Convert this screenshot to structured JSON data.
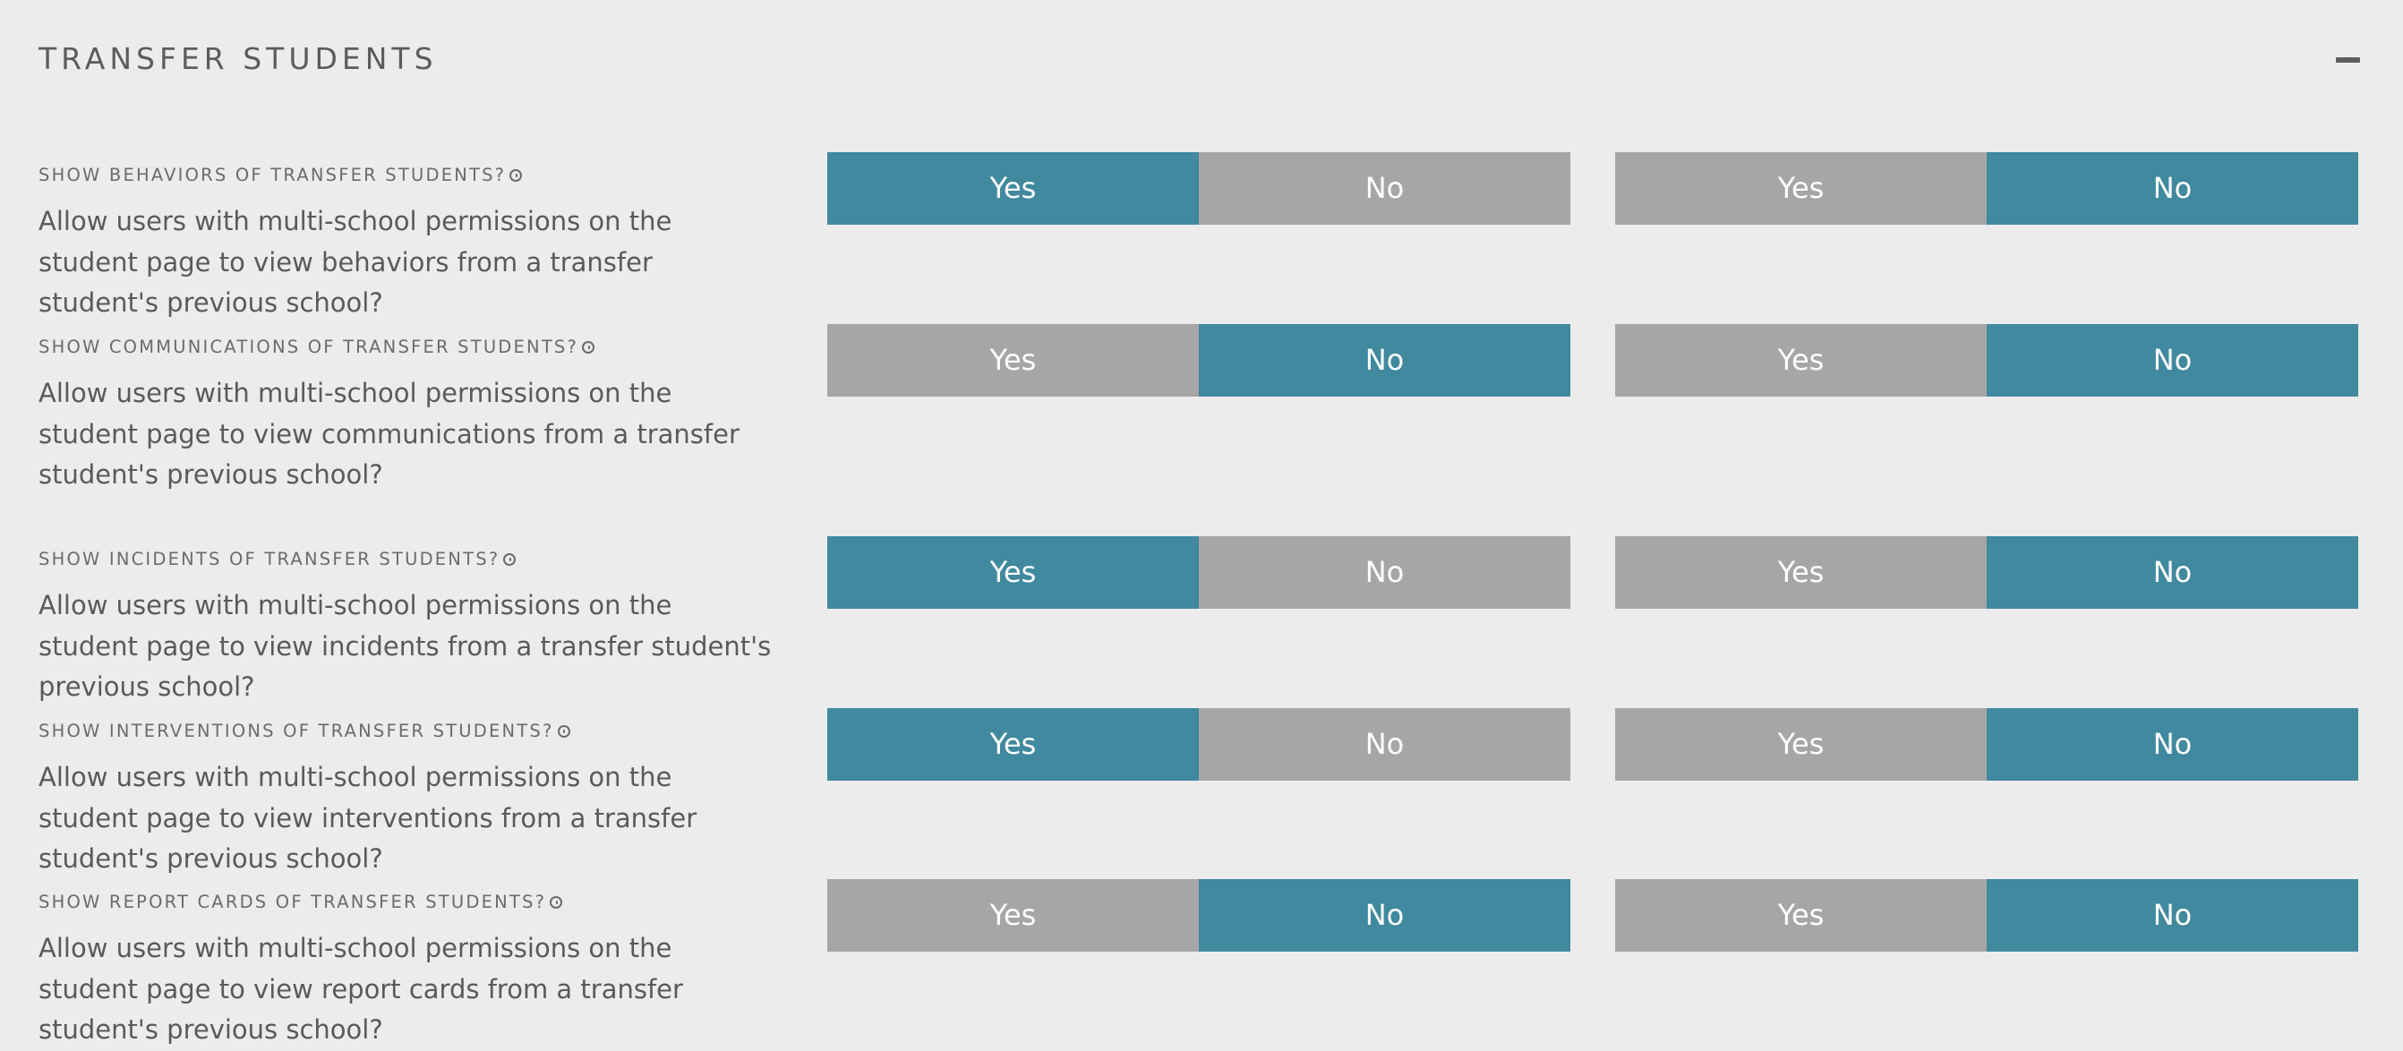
{
  "section": {
    "title": "TRANSFER STUDENTS"
  },
  "colors": {
    "active": "#40899e",
    "inactive": "#a6a6a6",
    "background": "#ececec"
  },
  "settings": [
    {
      "label": "SHOW BEHAVIORS OF TRANSFER STUDENTS?",
      "description": "Allow users with multi-school permissions on the student page to view behaviors from a transfer student's previous school?",
      "toggle_a": {
        "yes": "Yes",
        "no": "No",
        "selected": "Yes"
      },
      "toggle_b": {
        "yes": "Yes",
        "no": "No",
        "selected": "No"
      }
    },
    {
      "label": "SHOW COMMUNICATIONS OF TRANSFER STUDENTS?",
      "description": "Allow users with multi-school permissions on the student page to view communications from a transfer student's previous school?",
      "toggle_a": {
        "yes": "Yes",
        "no": "No",
        "selected": "No"
      },
      "toggle_b": {
        "yes": "Yes",
        "no": "No",
        "selected": "No"
      }
    },
    {
      "label": "SHOW INCIDENTS OF TRANSFER STUDENTS?",
      "description": "Allow users with multi-school permissions on the student page to view incidents from a transfer student's previous school?",
      "toggle_a": {
        "yes": "Yes",
        "no": "No",
        "selected": "Yes"
      },
      "toggle_b": {
        "yes": "Yes",
        "no": "No",
        "selected": "No"
      }
    },
    {
      "label": "SHOW INTERVENTIONS OF TRANSFER STUDENTS?",
      "description": "Allow users with multi-school permissions on the student page to view interventions from a transfer student's previous school?",
      "toggle_a": {
        "yes": "Yes",
        "no": "No",
        "selected": "Yes"
      },
      "toggle_b": {
        "yes": "Yes",
        "no": "No",
        "selected": "No"
      }
    },
    {
      "label": "SHOW REPORT CARDS OF TRANSFER STUDENTS?",
      "description": "Allow users with multi-school permissions on the student page to view report cards from a transfer student's previous school?",
      "toggle_a": {
        "yes": "Yes",
        "no": "No",
        "selected": "No"
      },
      "toggle_b": {
        "yes": "Yes",
        "no": "No",
        "selected": "No"
      }
    }
  ]
}
